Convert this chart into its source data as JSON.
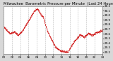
{
  "title": "Milwaukee  Barometric Pressure per Minute  (Last 24 Hours)",
  "bg_color": "#d8d8d8",
  "plot_bg_color": "#ffffff",
  "line_color": "#cc0000",
  "grid_color": "#b0b0b0",
  "y_min": 29.15,
  "y_max": 30.2,
  "y_ticks": [
    29.2,
    29.3,
    29.4,
    29.5,
    29.6,
    29.7,
    29.8,
    29.9,
    30.0,
    30.1,
    30.2
  ],
  "num_points": 1440,
  "title_fontsize": 3.8,
  "tick_fontsize": 3.0,
  "marker_size": 0.7,
  "vgrid_interval": 2
}
